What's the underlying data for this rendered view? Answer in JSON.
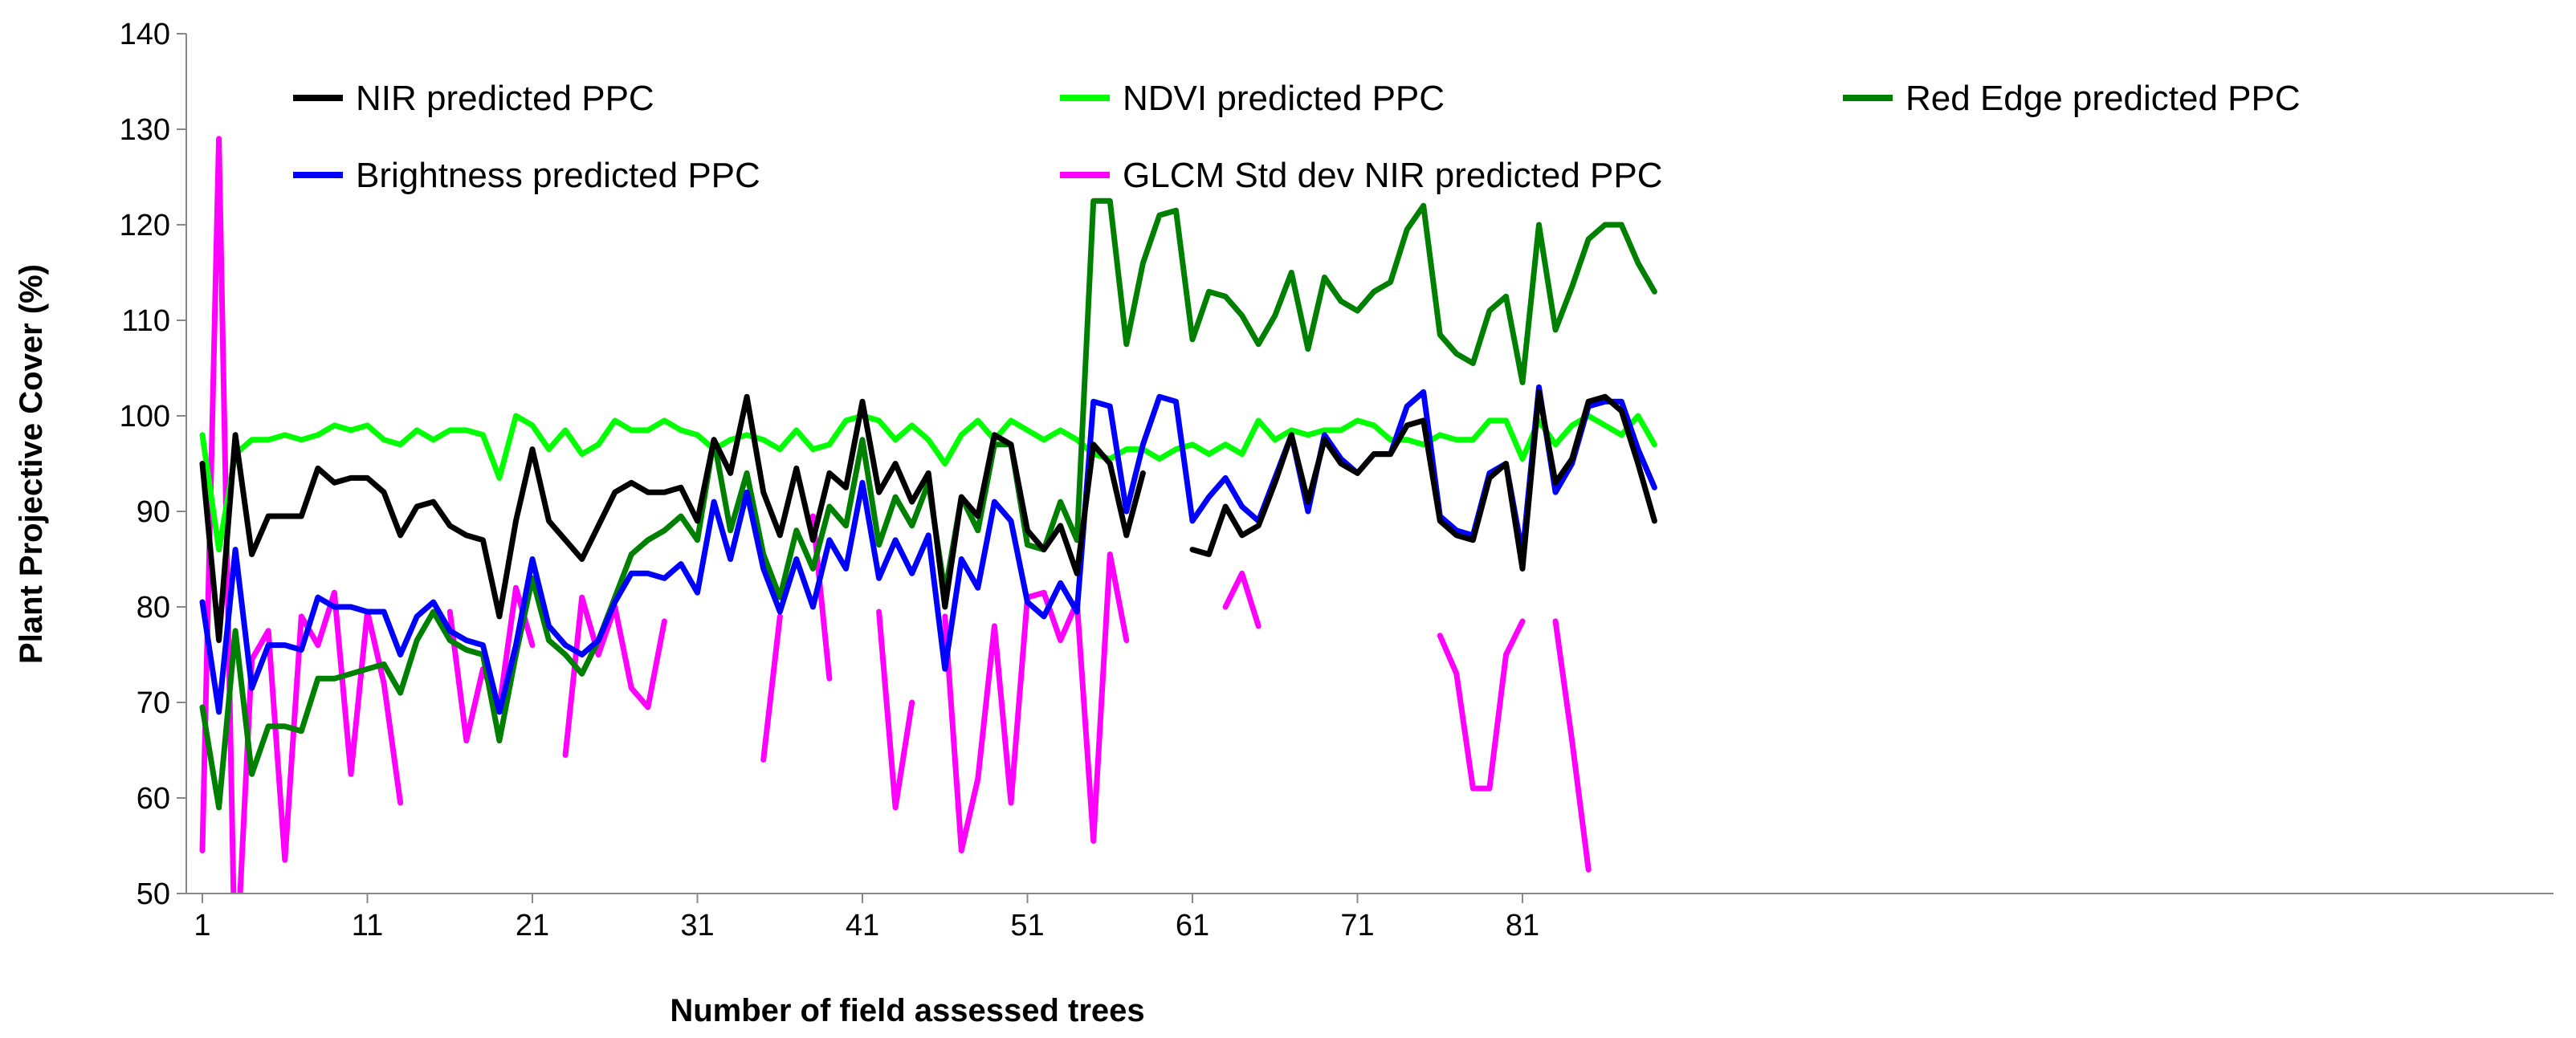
{
  "chart_data": {
    "type": "line",
    "title": "",
    "xlabel": "Number of field assessed trees",
    "ylabel": "Plant Projective Cover (%)",
    "xlim": [
      1,
      89
    ],
    "ylim": [
      50,
      140
    ],
    "x_ticks": [
      1,
      11,
      21,
      31,
      41,
      51,
      61,
      71,
      81
    ],
    "y_ticks": [
      50,
      60,
      70,
      80,
      90,
      100,
      110,
      120,
      130,
      140
    ],
    "grid": false,
    "legend": "top",
    "series": [
      {
        "name": "NIR predicted PPC",
        "color": "#000000",
        "values": [
          95,
          76.5,
          98,
          85.5,
          89.5,
          89.5,
          89.5,
          94.5,
          93,
          93.5,
          93.5,
          92,
          87.5,
          90.5,
          91,
          88.5,
          87.5,
          87,
          79,
          89,
          96.5,
          89,
          87,
          85,
          88.5,
          92,
          93,
          92,
          92,
          92.5,
          89,
          97.5,
          94,
          102,
          92,
          87.5,
          94.5,
          87,
          94,
          92.5,
          101.5,
          92,
          95,
          91,
          94,
          80,
          91.5,
          89.5,
          98,
          97,
          88,
          86,
          88.5,
          83.5,
          97,
          95,
          87.5,
          94,
          null,
          null,
          86,
          85.5,
          90.5,
          87.5,
          88.5,
          93,
          98,
          91,
          97.5,
          95,
          94,
          96,
          96,
          99,
          99.5,
          89,
          87.5,
          87,
          93.5,
          95,
          84,
          102.5,
          93,
          95.5,
          101.5,
          102,
          100.5,
          95,
          89
        ]
      },
      {
        "name": "NDVI predicted PPC",
        "color": "#00ff00",
        "values": [
          98,
          86,
          96,
          97.5,
          97.5,
          98,
          97.5,
          98,
          99,
          98.5,
          99,
          97.5,
          97,
          98.5,
          97.5,
          98.5,
          98.5,
          98,
          93.5,
          100,
          99,
          96.5,
          98.5,
          96,
          97,
          99.5,
          98.5,
          98.5,
          99.5,
          98.5,
          98,
          96.5,
          97.5,
          98,
          97.5,
          96.5,
          98.5,
          96.5,
          97,
          99.5,
          100,
          99.5,
          97.5,
          99,
          97.5,
          95,
          98,
          99.5,
          97.5,
          99.5,
          98.5,
          97.5,
          98.5,
          97.5,
          96,
          95.5,
          96.5,
          96.5,
          95.5,
          96.5,
          97,
          96,
          97,
          96,
          99.5,
          97.5,
          98.5,
          98,
          98.5,
          98.5,
          99.5,
          99,
          97.5,
          97.5,
          97,
          98,
          97.5,
          97.5,
          99.5,
          99.5,
          95.5,
          99.5,
          97,
          99,
          100,
          99,
          98,
          100,
          97
        ]
      },
      {
        "name": "Red Edge predicted PPC",
        "color": "#008000",
        "values": [
          69.5,
          59,
          77.5,
          62.5,
          67.5,
          67.5,
          67,
          72.5,
          72.5,
          73,
          73.5,
          74,
          71,
          76.5,
          79.5,
          76.5,
          75.5,
          75,
          66,
          75,
          83,
          76.5,
          75,
          73,
          76.5,
          81,
          85.5,
          87,
          88,
          89.5,
          87,
          97.5,
          88,
          94,
          85.5,
          81,
          88,
          84,
          90.5,
          88.5,
          97.5,
          86.5,
          91.5,
          88.5,
          93,
          81.5,
          91.5,
          88,
          97,
          97,
          86.5,
          86,
          91,
          87,
          122.5,
          122.5,
          107.5,
          116,
          121,
          121.5,
          108,
          113,
          112.5,
          110.5,
          107.5,
          110.5,
          115,
          107,
          114.5,
          112,
          111,
          113,
          114,
          119.5,
          122,
          108.5,
          106.5,
          105.5,
          111,
          112.5,
          103.5,
          120,
          109,
          113.5,
          118.5,
          120,
          120,
          116,
          113
        ]
      },
      {
        "name": "Brightness predicted PPC",
        "color": "#0000ff",
        "values": [
          80.5,
          69,
          86,
          71.5,
          76,
          76,
          75.5,
          81,
          80,
          80,
          79.5,
          79.5,
          75,
          79,
          80.5,
          77.5,
          76.5,
          76,
          69,
          76,
          85,
          78,
          76,
          75,
          76.5,
          80.5,
          83.5,
          83.5,
          83,
          84.5,
          81.5,
          91,
          85,
          92,
          84,
          79.5,
          85,
          80,
          87,
          84,
          93,
          83,
          87,
          83.5,
          87.5,
          73.5,
          85,
          82,
          91,
          89,
          80.5,
          79,
          82.5,
          79.5,
          101.5,
          101,
          90,
          97,
          102,
          101.5,
          89,
          91.5,
          93.5,
          90.5,
          89,
          93.5,
          98,
          90,
          98,
          95.5,
          94,
          96,
          96,
          101,
          102.5,
          89.5,
          88,
          87.5,
          94,
          95,
          85.5,
          103,
          92,
          95,
          101,
          101.5,
          101.5,
          96.5,
          92.5
        ]
      },
      {
        "name": "GLCM Std dev NIR predicted PPC",
        "color": "#ff00ff",
        "values": [
          54.5,
          129,
          40,
          74.5,
          77.5,
          53.5,
          79,
          76,
          81.5,
          62.5,
          79.5,
          72,
          59.5,
          null,
          null,
          79.5,
          66,
          73.5,
          69.5,
          82,
          76,
          null,
          64.5,
          81,
          75,
          80,
          71.5,
          69.5,
          78.5,
          null,
          null,
          null,
          null,
          null,
          64,
          79,
          null,
          89.5,
          72.5,
          null,
          null,
          79.5,
          59,
          70,
          null,
          79,
          54.5,
          62,
          78,
          59.5,
          81,
          81.5,
          76.5,
          80.5,
          55.5,
          85.5,
          76.5,
          null,
          null,
          90,
          null,
          null,
          80,
          83.5,
          78,
          null,
          53.5,
          null,
          null,
          null,
          null,
          null,
          null,
          null,
          null,
          77,
          73,
          61,
          61,
          75,
          78.5,
          null,
          78.5,
          66,
          52.5,
          null,
          55.5,
          null,
          76.5
        ]
      }
    ]
  }
}
